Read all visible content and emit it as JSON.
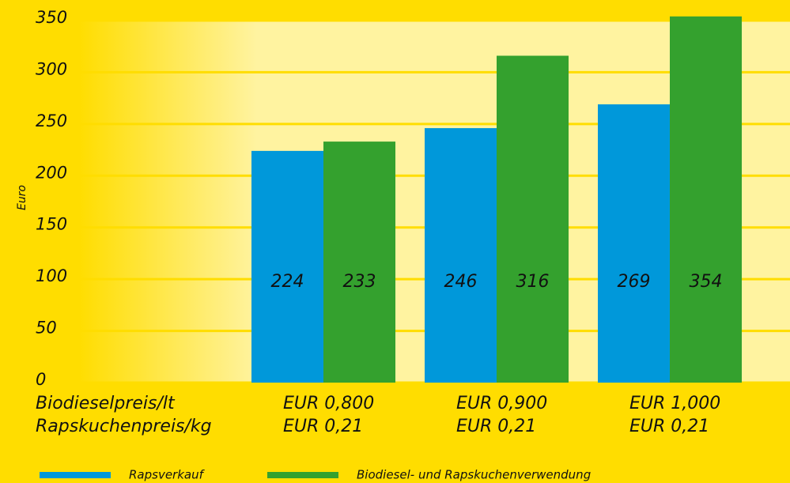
{
  "chart_data": {
    "type": "bar",
    "ylabel": "Euro",
    "category_row_labels": [
      "Biodieselpreis/lt",
      "Rapskuchenpreis/kg"
    ],
    "categories": [
      [
        "EUR 0,800",
        "EUR 0,21"
      ],
      [
        "EUR 0,900",
        "EUR 0,21"
      ],
      [
        "EUR 1,000",
        "EUR 0,21"
      ]
    ],
    "series": [
      {
        "name": "Rapsverkauf",
        "color": "#0098DA",
        "values": [
          224,
          246,
          269
        ]
      },
      {
        "name": "Biodiesel- und Rapskuchenverwendung",
        "color": "#34A12E",
        "values": [
          233,
          316,
          354
        ]
      }
    ],
    "ylim": [
      0,
      350
    ],
    "yticks": [
      0,
      50,
      100,
      150,
      200,
      250,
      300,
      350
    ],
    "grid": true,
    "legend": "bottom"
  }
}
